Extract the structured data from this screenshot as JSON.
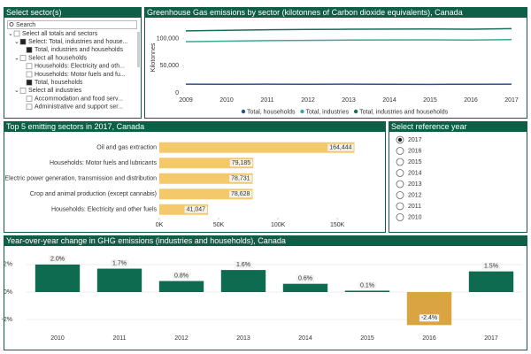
{
  "sector_panel": {
    "title": "Select sector(s)",
    "search": "Search",
    "items": [
      {
        "label": "Select all totals and sectors",
        "level": 0,
        "checked": false
      },
      {
        "label": "Select: Total, industries and house...",
        "level": 1,
        "checked": true
      },
      {
        "label": "Total, industries and households",
        "level": 2,
        "checked": true
      },
      {
        "label": "Select all households",
        "level": 1,
        "checked": false
      },
      {
        "label": "Households: Electricity and oth...",
        "level": 2,
        "checked": false
      },
      {
        "label": "Households: Motor fuels and fu...",
        "level": 2,
        "checked": false
      },
      {
        "label": "Total, households",
        "level": 2,
        "checked": true
      },
      {
        "label": "Select all industries",
        "level": 1,
        "checked": false
      },
      {
        "label": "Accommodation and food serv...",
        "level": 2,
        "checked": false
      },
      {
        "label": "Administrative and support ser...",
        "level": 2,
        "checked": false
      }
    ]
  },
  "year_panel": {
    "title": "Select reference year",
    "years": [
      "2017",
      "2016",
      "2015",
      "2014",
      "2013",
      "2012",
      "2011",
      "2010"
    ],
    "selected_index": 0
  },
  "chart_data": [
    {
      "type": "line",
      "title": "Greenhouse Gas emissions by sector (kilotonnes of Carbon dioxide equivalents), Canada",
      "y_label": "Kilotonnes",
      "categories": [
        "2009",
        "2010",
        "2011",
        "2012",
        "2013",
        "2014",
        "2015",
        "2016",
        "2017"
      ],
      "series": [
        {
          "name": "Total, households",
          "color": "#2b4f8c",
          "values": [
            16000,
            15800,
            16100,
            15900,
            16000,
            15800,
            15700,
            15900,
            16100
          ]
        },
        {
          "name": "Total, industries",
          "color": "#3aa896",
          "values": [
            94000,
            95000,
            96000,
            96500,
            97000,
            97300,
            97500,
            97000,
            98000
          ]
        },
        {
          "name": "Total, industries and households",
          "color": "#1c6b58",
          "values": [
            114000,
            115000,
            116000,
            116500,
            117000,
            117300,
            117500,
            117000,
            118000
          ]
        }
      ],
      "ylim": [
        0,
        130000
      ],
      "yticks": [
        0,
        {
          "value": 50000,
          "label": "50,000"
        },
        {
          "value": 100000,
          "label": "100,000"
        }
      ]
    },
    {
      "type": "hbar",
      "title": "Top 5 emitting sectors in 2017, Canada",
      "categories": [
        "Oil and gas extraction",
        "Households: Motor fuels and lubricants",
        "Electric power generation, transmission and distribution",
        "Crop and animal production (except cannabis)",
        "Households: Electricity and other fuels"
      ],
      "values": [
        164444,
        79185,
        78731,
        78628,
        41047
      ],
      "value_labels": [
        "164,444",
        "79,185",
        "78,731",
        "78,628",
        "41,047"
      ],
      "color": "#f3c96b",
      "xlim": [
        0,
        170000
      ],
      "xticks": [
        {
          "value": 0,
          "label": "0K"
        },
        {
          "value": 50000,
          "label": "50K"
        },
        {
          "value": 100000,
          "label": "100K"
        },
        {
          "value": 150000,
          "label": "150K"
        }
      ]
    },
    {
      "type": "bar",
      "title": "Year-over-year change in GHG emissions (industries and households), Canada",
      "categories": [
        "2010",
        "2011",
        "2012",
        "2013",
        "2014",
        "2015",
        "2016",
        "2017"
      ],
      "values": [
        2.0,
        1.7,
        0.8,
        1.6,
        0.6,
        0.1,
        -2.4,
        1.5
      ],
      "value_labels": [
        "2.0%",
        "1.7%",
        "0.8%",
        "1.6%",
        "0.6%",
        "0.1%",
        "-2.4%",
        "1.5%"
      ],
      "colors": [
        "#0e6b4f",
        "#0e6b4f",
        "#0e6b4f",
        "#0e6b4f",
        "#0e6b4f",
        "#0e6b4f",
        "#d9a441",
        "#0e6b4f"
      ],
      "ylim": [
        -2.7,
        2.7
      ],
      "yticks": [
        {
          "value": -2,
          "label": "-2%"
        },
        {
          "value": 0,
          "label": "0%"
        },
        {
          "value": 2,
          "label": "2%"
        }
      ]
    }
  ]
}
